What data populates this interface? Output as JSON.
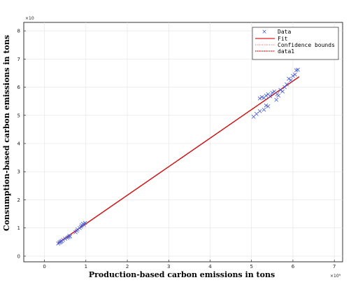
{
  "chart_data": {
    "type": "scatter",
    "title": "",
    "xlabel": "Production-based carbon emissions in tons",
    "ylabel": "Consumption-based carbon emissions in tons",
    "x_multiplier": "×10⁹",
    "y_multiplier": "×10",
    "xlim": [
      -0.5,
      7.2
    ],
    "ylim": [
      -0.2,
      8.3
    ],
    "xticks": [
      0,
      1,
      2,
      3,
      4,
      5,
      6,
      7
    ],
    "yticks": [
      0,
      1,
      2,
      3,
      4,
      5,
      6,
      7,
      8
    ],
    "grid": true,
    "legend_position": "top-right",
    "legend": [
      "Data",
      "Fit",
      "Confidence bounds",
      "data1"
    ],
    "colors": {
      "data": "#4a5cd6",
      "fit": "#e02020",
      "bounds": "#e05050",
      "data1": "#c01010",
      "grid": "#e3e3e3"
    },
    "series": [
      {
        "name": "Data",
        "marker": "x",
        "points": [
          [
            0.33,
            0.45
          ],
          [
            0.36,
            0.48
          ],
          [
            0.38,
            0.5
          ],
          [
            0.4,
            0.52
          ],
          [
            0.42,
            0.54
          ],
          [
            0.45,
            0.58
          ],
          [
            0.5,
            0.62
          ],
          [
            0.55,
            0.65
          ],
          [
            0.58,
            0.68
          ],
          [
            0.6,
            0.72
          ],
          [
            0.62,
            0.7
          ],
          [
            0.75,
            0.85
          ],
          [
            0.78,
            0.9
          ],
          [
            0.8,
            0.95
          ],
          [
            0.85,
            1.0
          ],
          [
            0.88,
            1.05
          ],
          [
            0.9,
            1.1
          ],
          [
            0.93,
            1.15
          ],
          [
            0.95,
            1.12
          ],
          [
            0.98,
            1.18
          ],
          [
            5.05,
            4.95
          ],
          [
            5.12,
            5.05
          ],
          [
            5.2,
            5.15
          ],
          [
            5.3,
            5.2
          ],
          [
            5.35,
            5.35
          ],
          [
            5.4,
            5.32
          ],
          [
            5.2,
            5.6
          ],
          [
            5.25,
            5.65
          ],
          [
            5.3,
            5.62
          ],
          [
            5.35,
            5.7
          ],
          [
            5.4,
            5.75
          ],
          [
            5.45,
            5.68
          ],
          [
            5.5,
            5.8
          ],
          [
            5.55,
            5.85
          ],
          [
            5.6,
            5.55
          ],
          [
            5.65,
            5.7
          ],
          [
            5.7,
            5.9
          ],
          [
            5.75,
            5.85
          ],
          [
            5.8,
            6.0
          ],
          [
            5.85,
            6.1
          ],
          [
            5.9,
            6.3
          ],
          [
            5.95,
            6.25
          ],
          [
            6.0,
            6.4
          ],
          [
            6.05,
            6.45
          ],
          [
            6.08,
            6.6
          ],
          [
            6.12,
            6.62
          ],
          [
            5.62,
            5.75
          ]
        ]
      },
      {
        "name": "Fit",
        "line": [
          [
            0.33,
            0.47
          ],
          [
            6.15,
            6.37
          ]
        ]
      },
      {
        "name": "Confidence bounds",
        "line": [
          [
            0.33,
            0.47
          ],
          [
            6.15,
            6.37
          ]
        ]
      },
      {
        "name": "data1",
        "line": [
          [
            0.33,
            0.47
          ],
          [
            6.15,
            6.37
          ]
        ]
      }
    ]
  }
}
